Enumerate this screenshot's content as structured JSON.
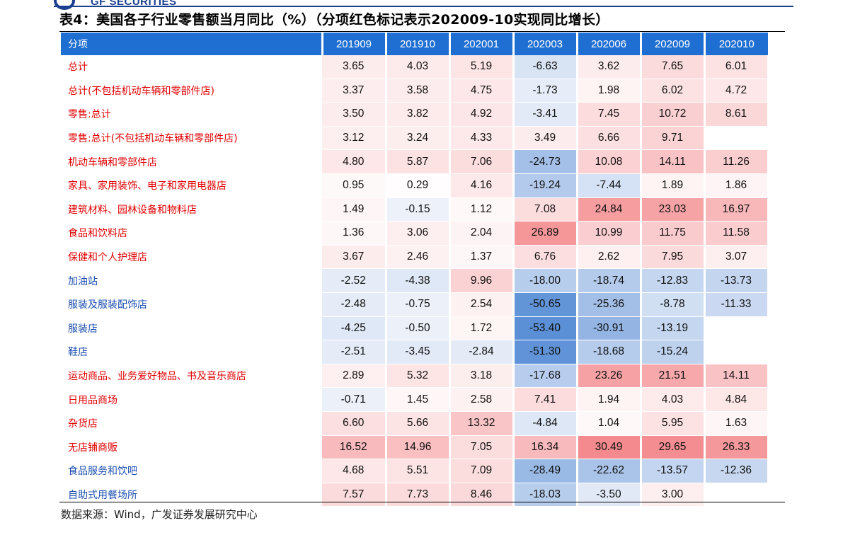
{
  "logo": {
    "text": "GF SECURITIES"
  },
  "title": "表4：美国各子行业零售额当月同比（%）（分项红色标记表示202009-10实现同比增长）",
  "table": {
    "header_label": "分项",
    "columns": [
      "201909",
      "201910",
      "202001",
      "202003",
      "202006",
      "202009",
      "202010"
    ],
    "rows": [
      {
        "name": "总计",
        "color": "red",
        "values": [
          "3.65",
          "4.03",
          "5.19",
          "-6.63",
          "3.62",
          "7.65",
          "6.01"
        ]
      },
      {
        "name": "总计(不包括机动车辆和零部件店)",
        "color": "red",
        "values": [
          "3.37",
          "3.58",
          "4.75",
          "-1.73",
          "1.98",
          "6.02",
          "4.72"
        ]
      },
      {
        "name": "零售:总计",
        "color": "red",
        "values": [
          "3.50",
          "3.82",
          "4.92",
          "-3.41",
          "7.45",
          "10.72",
          "8.61"
        ]
      },
      {
        "name": "零售:总计(不包括机动车辆和零部件店)",
        "color": "red",
        "values": [
          "3.12",
          "3.24",
          "4.33",
          "3.49",
          "6.66",
          "9.71",
          ""
        ]
      },
      {
        "name": "机动车辆和零部件店",
        "color": "red",
        "values": [
          "4.80",
          "5.87",
          "7.06",
          "-24.73",
          "10.08",
          "14.11",
          "11.26"
        ]
      },
      {
        "name": "家具、家用装饰、电子和家用电器店",
        "color": "red",
        "values": [
          "0.95",
          "0.29",
          "4.16",
          "-19.24",
          "-7.44",
          "1.89",
          "1.86"
        ]
      },
      {
        "name": "建筑材料、园林设备和物料店",
        "color": "red",
        "values": [
          "1.49",
          "-0.15",
          "1.12",
          "7.08",
          "24.84",
          "23.03",
          "16.97"
        ]
      },
      {
        "name": "食品和饮料店",
        "color": "red",
        "values": [
          "1.36",
          "3.06",
          "2.04",
          "26.89",
          "10.99",
          "11.75",
          "11.58"
        ]
      },
      {
        "name": "保健和个人护理店",
        "color": "red",
        "values": [
          "3.67",
          "2.46",
          "1.37",
          "6.76",
          "2.62",
          "7.95",
          "3.07"
        ]
      },
      {
        "name": "加油站",
        "color": "blue",
        "values": [
          "-2.52",
          "-4.38",
          "9.96",
          "-18.00",
          "-18.74",
          "-12.83",
          "-13.73"
        ]
      },
      {
        "name": "服装及服装配饰店",
        "color": "blue",
        "values": [
          "-2.48",
          "-0.75",
          "2.54",
          "-50.65",
          "-25.36",
          "-8.78",
          "-11.33"
        ]
      },
      {
        "name": "服装店",
        "color": "blue",
        "values": [
          "-4.25",
          "-0.50",
          "1.72",
          "-53.40",
          "-30.91",
          "-13.19",
          ""
        ]
      },
      {
        "name": "鞋店",
        "color": "blue",
        "values": [
          "-2.51",
          "-3.45",
          "-2.84",
          "-51.30",
          "-18.68",
          "-15.24",
          ""
        ]
      },
      {
        "name": "运动商品、业务爱好物品、书及音乐商店",
        "color": "red",
        "values": [
          "2.89",
          "5.32",
          "3.18",
          "-17.68",
          "23.26",
          "21.51",
          "14.11"
        ]
      },
      {
        "name": "日用品商场",
        "color": "red",
        "values": [
          "-0.71",
          "1.45",
          "2.58",
          "7.41",
          "1.94",
          "4.03",
          "4.84"
        ]
      },
      {
        "name": "杂货店",
        "color": "red",
        "values": [
          "6.60",
          "5.66",
          "13.32",
          "-4.84",
          "1.04",
          "5.95",
          "1.63"
        ]
      },
      {
        "name": "无店铺商贩",
        "color": "red",
        "values": [
          "16.52",
          "14.96",
          "7.05",
          "16.34",
          "30.49",
          "29.65",
          "26.33"
        ]
      },
      {
        "name": "食品服务和饮吧",
        "color": "blue",
        "values": [
          "4.68",
          "5.51",
          "7.09",
          "-28.49",
          "-22.62",
          "-13.57",
          "-12.36"
        ]
      },
      {
        "name": "自助式用餐场所",
        "color": "blue",
        "values": [
          "7.57",
          "7.73",
          "8.46",
          "-18.03",
          "-3.50",
          "3.00",
          ""
        ]
      }
    ]
  },
  "source": "数据来源：Wind，广发证券发展研究中心",
  "colors": {
    "header": "#1f6fd3",
    "positive_max": "#f48a8e",
    "negative_max": "#5b8fd6",
    "label_red": "#e00000",
    "label_blue": "#1a4fb0"
  }
}
